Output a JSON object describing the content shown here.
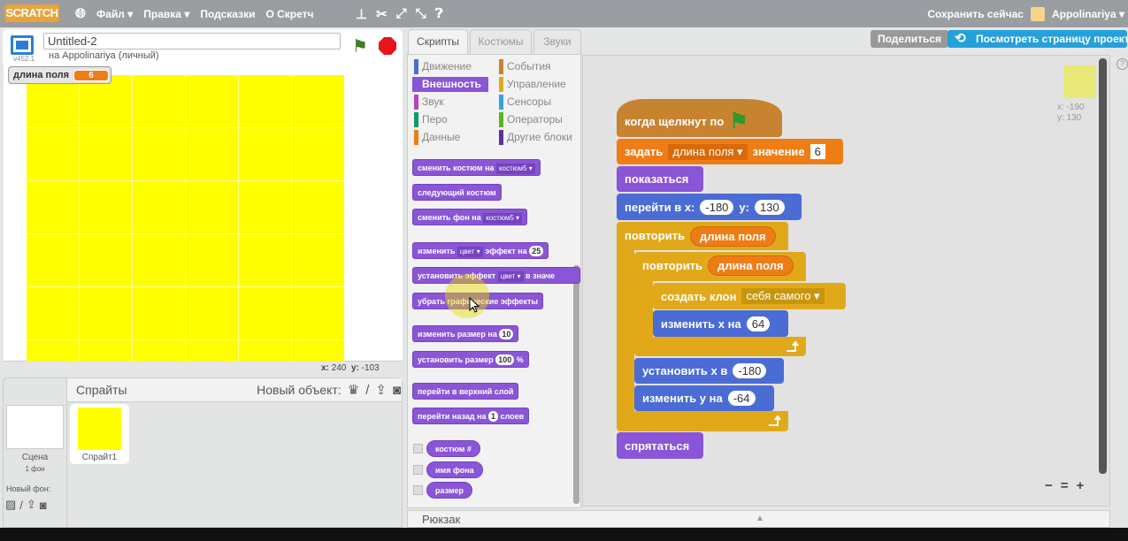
{
  "menubar": {
    "logo": "SCRATCH",
    "items": [
      "Файл ▾",
      "Правка ▾",
      "Подсказки",
      "О Скретч"
    ],
    "icons": [
      "globe-icon",
      "stamp-icon",
      "scissors-icon",
      "grow-icon",
      "shrink-icon",
      "help-icon"
    ],
    "save_now": "Сохранить сейчас",
    "user": "Appolinariya ▾"
  },
  "header": {
    "share": "Поделиться",
    "see_project": "Посмотреть страницу проекта"
  },
  "stage": {
    "project_title": "Untitled-2",
    "version": "v452.1",
    "owner": "на Appolinariya (личный)",
    "variable_name": "длина поля",
    "variable_value": "6",
    "x_label": "x:",
    "x_value": "240",
    "y_label": "y:",
    "y_value": "-103",
    "colors": {
      "fill": "#ffff00"
    }
  },
  "sprites": {
    "title": "Спрайты",
    "new_object": "Новый объект:",
    "stage_label": "Сцена",
    "stage_sub": "1 фон",
    "new_backdrop": "Новый фон:",
    "sprite_name": "Спрайт1"
  },
  "tabs": [
    "Скрипты",
    "Костюмы",
    "Звуки"
  ],
  "categories": [
    {
      "label": "Движение",
      "color": "#4a6cd4"
    },
    {
      "label": "События",
      "color": "#c88330"
    },
    {
      "label": "Внешность",
      "color": "#8a55d7",
      "active": true
    },
    {
      "label": "Управление",
      "color": "#e1a91a"
    },
    {
      "label": "Звук",
      "color": "#bb42c3"
    },
    {
      "label": "Сенсоры",
      "color": "#2ca5e2"
    },
    {
      "label": "Перо",
      "color": "#0e9a6c"
    },
    {
      "label": "Операторы",
      "color": "#5cb712"
    },
    {
      "label": "Данные",
      "color": "#ee7d16"
    },
    {
      "label": "Другие блоки",
      "color": "#632d99"
    }
  ],
  "palette": {
    "switch_costume": [
      "сменить костюм на",
      "костюм5 ▾"
    ],
    "next_costume": "следующий костюм",
    "switch_backdrop": [
      "сменить фон на",
      "костюм5 ▾"
    ],
    "change_effect": [
      "изменить",
      "цвет ▾",
      "эффект на",
      "25"
    ],
    "set_effect": [
      "установить эффект",
      "цвет ▾",
      "в значе"
    ],
    "clear_effects": "убрать графические эффекты",
    "change_size": [
      "изменить размер на",
      "10"
    ],
    "set_size": [
      "установить размер",
      "100",
      "%"
    ],
    "front": "перейти в верхний слой",
    "back": [
      "перейти назад на",
      "1",
      "слоев"
    ],
    "reporters": [
      "костюм #",
      "имя фона",
      "размер"
    ]
  },
  "script": {
    "hat": "когда щелкнут по",
    "set": [
      "задать",
      "длина поля ▾",
      "значение",
      "6"
    ],
    "show": "показаться",
    "goto": [
      "перейти в x:",
      "-180",
      "y:",
      "130"
    ],
    "repeat1": [
      "повторить",
      "длина поля"
    ],
    "repeat2": [
      "повторить",
      "длина поля"
    ],
    "clone": [
      "создать клон",
      "себя самого ▾"
    ],
    "changex": [
      "изменить x на",
      "64"
    ],
    "setx": [
      "установить x в",
      "-180"
    ],
    "changey": [
      "изменить y на",
      "-64"
    ],
    "hide": "спрятаться"
  },
  "sprite_info": {
    "x": "x: -190",
    "y": "y: 130"
  },
  "backpack": "Рюкзак",
  "zoom": [
    "−",
    "=",
    "+"
  ]
}
